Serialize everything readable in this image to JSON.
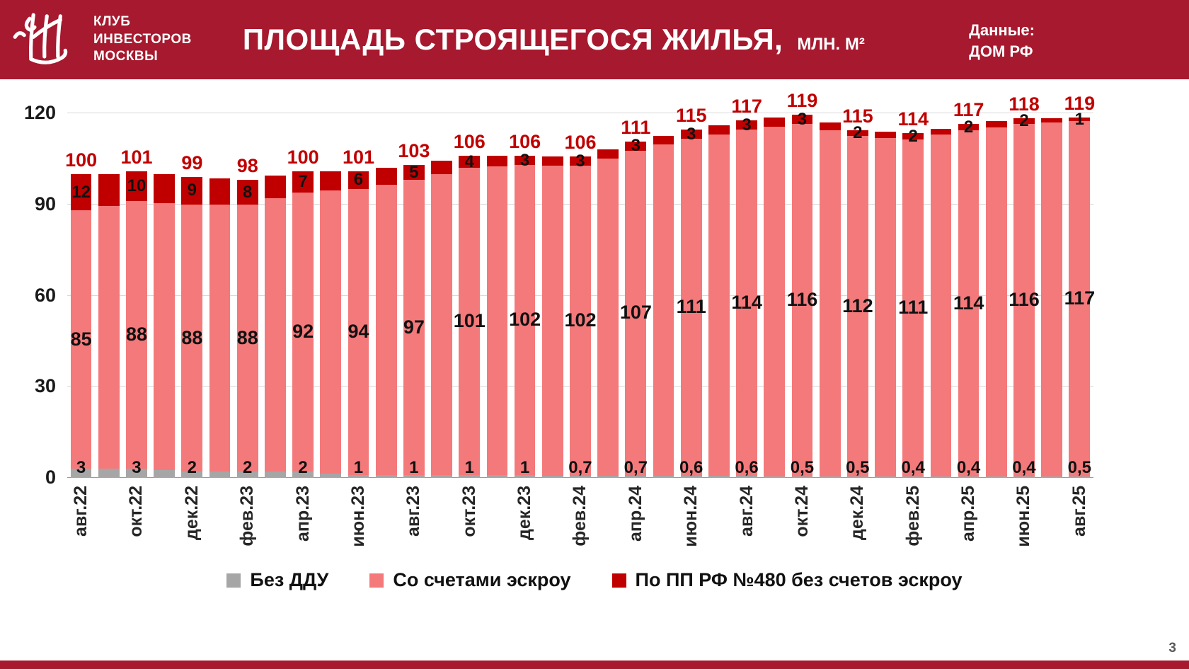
{
  "header": {
    "club_name_lines": [
      "КЛУБ",
      "ИНВЕСТОРОВ",
      "МОСКВЫ"
    ],
    "title": "ПЛОЩАДЬ СТРОЯЩЕГОСЯ ЖИЛЬЯ,",
    "title_units": "МЛН. М²",
    "source_label": "Данные:",
    "source_value": "ДОМ РФ"
  },
  "footer": {
    "page_number": "3"
  },
  "colors": {
    "brand_red": "#A6192E",
    "bar_pink": "#F4797B",
    "bar_dark_red": "#C00000",
    "bar_gray": "#A6A6A6",
    "total_label": "#C00000"
  },
  "chart_data": {
    "type": "bar",
    "stacked": true,
    "title": "ПЛОЩАДЬ СТРОЯЩЕГОСЯ ЖИЛЬЯ, МЛН. М²",
    "xlabel": "",
    "ylabel": "",
    "ylim": [
      0,
      120
    ],
    "yticks": [
      "0",
      "30",
      "60",
      "90",
      "120"
    ],
    "grid": true,
    "legend_position": "bottom",
    "legend": [
      {
        "label": "Без ДДУ",
        "color": "#A6A6A6"
      },
      {
        "label": "Со счетами эскроу",
        "color": "#F4797B"
      },
      {
        "label": "По ПП РФ №480 без счетов эскроу",
        "color": "#C00000"
      }
    ],
    "series_order": [
      "no_ddu",
      "escrow",
      "pp480"
    ],
    "note": "Bars marked estimated:true have no printed values in the source; heights estimated from pixels.",
    "bars": [
      {
        "month": "авг.22",
        "axis_label": "авг.22",
        "no_ddu": 3,
        "escrow": 85,
        "pp480": 12,
        "estimated": false,
        "labels": {
          "total": "100",
          "pp480": "12",
          "escrow": "85",
          "no_ddu": "3"
        }
      },
      {
        "month": "сен.22",
        "axis_label": "",
        "no_ddu": 3,
        "escrow": 86.5,
        "pp480": 10.5,
        "estimated": true,
        "labels": null
      },
      {
        "month": "окт.22",
        "axis_label": "окт.22",
        "no_ddu": 3,
        "escrow": 88,
        "pp480": 10,
        "estimated": false,
        "labels": {
          "total": "101",
          "pp480": "10",
          "escrow": "88",
          "no_ddu": "3"
        }
      },
      {
        "month": "ноя.22",
        "axis_label": "",
        "no_ddu": 2.5,
        "escrow": 88,
        "pp480": 9.5,
        "estimated": true,
        "labels": null
      },
      {
        "month": "дек.22",
        "axis_label": "дек.22",
        "no_ddu": 2,
        "escrow": 88,
        "pp480": 9,
        "estimated": false,
        "labels": {
          "total": "99",
          "pp480": "9",
          "escrow": "88",
          "no_ddu": "2"
        }
      },
      {
        "month": "янв.23",
        "axis_label": "",
        "no_ddu": 2,
        "escrow": 88,
        "pp480": 8.5,
        "estimated": true,
        "labels": null
      },
      {
        "month": "фев.23",
        "axis_label": "фев.23",
        "no_ddu": 2,
        "escrow": 88,
        "pp480": 8,
        "estimated": false,
        "labels": {
          "total": "98",
          "pp480": "8",
          "escrow": "88",
          "no_ddu": "2"
        }
      },
      {
        "month": "мар.23",
        "axis_label": "",
        "no_ddu": 2,
        "escrow": 90,
        "pp480": 7.5,
        "estimated": true,
        "labels": null
      },
      {
        "month": "апр.23",
        "axis_label": "апр.23",
        "no_ddu": 2,
        "escrow": 92,
        "pp480": 7,
        "estimated": false,
        "labels": {
          "total": "100",
          "pp480": "7",
          "escrow": "92",
          "no_ddu": "2"
        }
      },
      {
        "month": "май.23",
        "axis_label": "",
        "no_ddu": 1.5,
        "escrow": 93,
        "pp480": 6.5,
        "estimated": true,
        "labels": null
      },
      {
        "month": "июн.23",
        "axis_label": "июн.23",
        "no_ddu": 1,
        "escrow": 94,
        "pp480": 6,
        "estimated": false,
        "labels": {
          "total": "101",
          "pp480": "6",
          "escrow": "94",
          "no_ddu": "1"
        }
      },
      {
        "month": "июл.23",
        "axis_label": "",
        "no_ddu": 1,
        "escrow": 95.5,
        "pp480": 5.5,
        "estimated": true,
        "labels": null
      },
      {
        "month": "авг.23",
        "axis_label": "авг.23",
        "no_ddu": 1,
        "escrow": 97,
        "pp480": 5,
        "estimated": false,
        "labels": {
          "total": "103",
          "pp480": "5",
          "escrow": "97",
          "no_ddu": "1"
        }
      },
      {
        "month": "сен.23",
        "axis_label": "",
        "no_ddu": 1,
        "escrow": 99,
        "pp480": 4.5,
        "estimated": true,
        "labels": null
      },
      {
        "month": "окт.23",
        "axis_label": "окт.23",
        "no_ddu": 1,
        "escrow": 101,
        "pp480": 4,
        "estimated": false,
        "labels": {
          "total": "106",
          "pp480": "4",
          "escrow": "101",
          "no_ddu": "1"
        }
      },
      {
        "month": "ноя.23",
        "axis_label": "",
        "no_ddu": 1,
        "escrow": 101.5,
        "pp480": 3.5,
        "estimated": true,
        "labels": null
      },
      {
        "month": "дек.23",
        "axis_label": "дек.23",
        "no_ddu": 1,
        "escrow": 102,
        "pp480": 3,
        "estimated": false,
        "labels": {
          "total": "106",
          "pp480": "3",
          "escrow": "102",
          "no_ddu": "1"
        }
      },
      {
        "month": "янв.24",
        "axis_label": "",
        "no_ddu": 0.8,
        "escrow": 102,
        "pp480": 3,
        "estimated": true,
        "labels": null
      },
      {
        "month": "фев.24",
        "axis_label": "фев.24",
        "no_ddu": 0.7,
        "escrow": 102,
        "pp480": 3,
        "estimated": false,
        "labels": {
          "total": "106",
          "pp480": "3",
          "escrow": "102",
          "no_ddu": "0,7"
        }
      },
      {
        "month": "мар.24",
        "axis_label": "",
        "no_ddu": 0.7,
        "escrow": 104.5,
        "pp480": 3,
        "estimated": true,
        "labels": null
      },
      {
        "month": "апр.24",
        "axis_label": "апр.24",
        "no_ddu": 0.7,
        "escrow": 107,
        "pp480": 3,
        "estimated": false,
        "labels": {
          "total": "111",
          "pp480": "3",
          "escrow": "107",
          "no_ddu": "0,7"
        }
      },
      {
        "month": "май.24",
        "axis_label": "",
        "no_ddu": 0.65,
        "escrow": 109,
        "pp480": 3,
        "estimated": true,
        "labels": null
      },
      {
        "month": "июн.24",
        "axis_label": "июн.24",
        "no_ddu": 0.6,
        "escrow": 111,
        "pp480": 3,
        "estimated": false,
        "labels": {
          "total": "115",
          "pp480": "3",
          "escrow": "111",
          "no_ddu": "0,6"
        }
      },
      {
        "month": "июл.24",
        "axis_label": "",
        "no_ddu": 0.6,
        "escrow": 112.5,
        "pp480": 3,
        "estimated": true,
        "labels": null
      },
      {
        "month": "авг.24",
        "axis_label": "авг.24",
        "no_ddu": 0.6,
        "escrow": 114,
        "pp480": 3,
        "estimated": false,
        "labels": {
          "total": "117",
          "pp480": "3",
          "escrow": "114",
          "no_ddu": "0,6"
        }
      },
      {
        "month": "сен.24",
        "axis_label": "",
        "no_ddu": 0.55,
        "escrow": 115,
        "pp480": 3,
        "estimated": true,
        "labels": null
      },
      {
        "month": "окт.24",
        "axis_label": "окт.24",
        "no_ddu": 0.5,
        "escrow": 116,
        "pp480": 3,
        "estimated": false,
        "labels": {
          "total": "119",
          "pp480": "3",
          "escrow": "116",
          "no_ddu": "0,5"
        }
      },
      {
        "month": "ноя.24",
        "axis_label": "",
        "no_ddu": 0.5,
        "escrow": 114,
        "pp480": 2.5,
        "estimated": true,
        "labels": null
      },
      {
        "month": "дек.24",
        "axis_label": "дек.24",
        "no_ddu": 0.5,
        "escrow": 112,
        "pp480": 2,
        "estimated": false,
        "labels": {
          "total": "115",
          "pp480": "2",
          "escrow": "112",
          "no_ddu": "0,5"
        }
      },
      {
        "month": "янв.25",
        "axis_label": "",
        "no_ddu": 0.45,
        "escrow": 111.5,
        "pp480": 2,
        "estimated": true,
        "labels": null
      },
      {
        "month": "фев.25",
        "axis_label": "фев.25",
        "no_ddu": 0.4,
        "escrow": 111,
        "pp480": 2,
        "estimated": false,
        "labels": {
          "total": "114",
          "pp480": "2",
          "escrow": "111",
          "no_ddu": "0,4"
        }
      },
      {
        "month": "мар.25",
        "axis_label": "",
        "no_ddu": 0.4,
        "escrow": 112.5,
        "pp480": 2,
        "estimated": true,
        "labels": null
      },
      {
        "month": "апр.25",
        "axis_label": "апр.25",
        "no_ddu": 0.4,
        "escrow": 114,
        "pp480": 2,
        "estimated": false,
        "labels": {
          "total": "117",
          "pp480": "2",
          "escrow": "114",
          "no_ddu": "0,4"
        }
      },
      {
        "month": "май.25",
        "axis_label": "",
        "no_ddu": 0.4,
        "escrow": 115,
        "pp480": 2,
        "estimated": true,
        "labels": null
      },
      {
        "month": "июн.25",
        "axis_label": "июн.25",
        "no_ddu": 0.4,
        "escrow": 116,
        "pp480": 2,
        "estimated": false,
        "labels": {
          "total": "118",
          "pp480": "2",
          "escrow": "116",
          "no_ddu": "0,4"
        }
      },
      {
        "month": "июл.25",
        "axis_label": "",
        "no_ddu": 0.45,
        "escrow": 116.5,
        "pp480": 1.5,
        "estimated": true,
        "labels": null
      },
      {
        "month": "авг.25",
        "axis_label": "авг.25",
        "no_ddu": 0.5,
        "escrow": 117,
        "pp480": 1,
        "estimated": false,
        "labels": {
          "total": "119",
          "pp480": "1",
          "escrow": "117",
          "no_ddu": "0,5"
        }
      }
    ]
  }
}
